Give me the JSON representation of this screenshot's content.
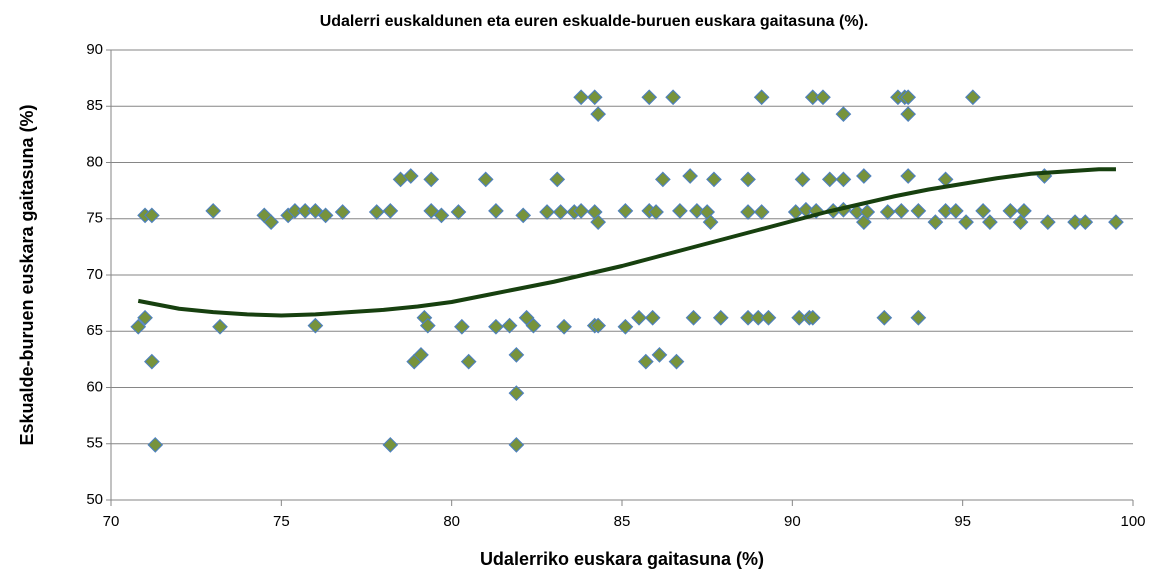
{
  "chart_data": {
    "type": "scatter",
    "title": "Udalerri euskaldunen eta euren eskualde-buruen euskara gaitasuna (%).",
    "x_label": "Udalerriko euskara gaitasuna (%)",
    "y_label": "Eskualde-buruen euskara gaitasuna (%)",
    "color": "#77933c",
    "edge_color": "#4f81bd",
    "x": [
      83.8,
      84.2,
      85.8,
      86.5,
      89.1,
      90.6,
      90.9,
      93.1,
      93.3,
      93.4,
      95.3,
      84.3,
      91.5,
      93.4,
      78.5,
      78.8,
      79.4,
      81.0,
      83.1,
      86.2,
      87.0,
      87.7,
      88.7,
      90.3,
      91.1,
      91.5,
      92.1,
      93.4,
      94.5,
      97.4,
      71.0,
      71.2,
      73.0,
      74.5,
      74.7,
      75.2,
      75.4,
      75.7,
      76.0,
      76.3,
      76.8,
      77.8,
      78.2,
      79.4,
      79.7,
      80.2,
      81.3,
      82.1,
      82.8,
      83.2,
      83.6,
      83.8,
      84.2,
      84.3,
      85.1,
      85.8,
      86.0,
      86.7,
      87.2,
      87.5,
      87.6,
      88.7,
      89.1,
      90.1,
      90.4,
      90.7,
      91.2,
      91.5,
      91.9,
      92.1,
      92.2,
      92.8,
      93.2,
      93.7,
      94.2,
      94.5,
      94.8,
      95.1,
      95.6,
      95.8,
      96.4,
      96.7,
      96.8,
      97.5,
      98.3,
      98.6,
      99.5,
      70.8,
      71.0,
      73.2,
      76.0,
      79.2,
      79.3,
      80.3,
      81.3,
      81.7,
      82.2,
      82.4,
      83.3,
      84.2,
      84.3,
      85.1,
      85.5,
      85.9,
      87.1,
      87.9,
      88.7,
      89.0,
      89.3,
      90.2,
      90.5,
      90.6,
      92.7,
      93.7,
      71.2,
      78.9,
      79.1,
      80.5,
      81.9,
      85.7,
      86.1,
      86.6,
      81.9,
      71.3,
      78.2,
      81.9
    ],
    "values": [
      85.8,
      85.8,
      85.8,
      85.8,
      85.8,
      85.8,
      85.8,
      85.8,
      85.8,
      85.8,
      85.8,
      84.3,
      84.3,
      84.3,
      78.5,
      78.8,
      78.5,
      78.5,
      78.5,
      78.5,
      78.8,
      78.5,
      78.5,
      78.5,
      78.5,
      78.5,
      78.8,
      78.8,
      78.5,
      78.8,
      75.3,
      75.3,
      75.7,
      75.3,
      74.7,
      75.3,
      75.7,
      75.7,
      75.7,
      75.3,
      75.6,
      75.6,
      75.7,
      75.7,
      75.3,
      75.6,
      75.7,
      75.3,
      75.6,
      75.6,
      75.6,
      75.7,
      75.6,
      74.7,
      75.7,
      75.7,
      75.6,
      75.7,
      75.7,
      75.6,
      74.7,
      75.6,
      75.6,
      75.6,
      75.8,
      75.7,
      75.7,
      75.8,
      75.6,
      74.7,
      75.6,
      75.6,
      75.7,
      75.7,
      74.7,
      75.7,
      75.7,
      74.7,
      75.7,
      74.7,
      75.7,
      74.7,
      75.7,
      74.7,
      74.7,
      74.7,
      74.7,
      65.4,
      66.2,
      65.4,
      65.5,
      66.2,
      65.5,
      65.4,
      65.4,
      65.5,
      66.2,
      65.5,
      65.4,
      65.5,
      65.5,
      65.4,
      66.2,
      66.2,
      66.2,
      66.2,
      66.2,
      66.2,
      66.2,
      66.2,
      66.2,
      66.2,
      66.2,
      66.2,
      62.3,
      62.3,
      62.9,
      62.3,
      62.9,
      62.3,
      62.9,
      62.3,
      59.5,
      54.9,
      54.9,
      54.9
    ],
    "trendline": {
      "color": "#17400f",
      "x": [
        70.8,
        72,
        73,
        74,
        75,
        76,
        77,
        78,
        79,
        80,
        81,
        82,
        83,
        84,
        85,
        86,
        87,
        88,
        89,
        90,
        91,
        92,
        93,
        94,
        95,
        96,
        97,
        98,
        99,
        99.5
      ],
      "values": [
        67.7,
        67.0,
        66.7,
        66.5,
        66.4,
        66.5,
        66.7,
        66.9,
        67.2,
        67.6,
        68.2,
        68.8,
        69.4,
        70.1,
        70.8,
        71.6,
        72.4,
        73.2,
        74.0,
        74.8,
        75.6,
        76.3,
        77.0,
        77.6,
        78.1,
        78.6,
        79.0,
        79.2,
        79.4,
        79.4
      ]
    },
    "xlim": [
      70,
      100
    ],
    "xticks": [
      70,
      75,
      80,
      85,
      90,
      95,
      100
    ],
    "ylim": [
      50,
      90
    ],
    "yticks": [
      50,
      55,
      60,
      65,
      70,
      75,
      80,
      85,
      90
    ],
    "grid": true
  }
}
